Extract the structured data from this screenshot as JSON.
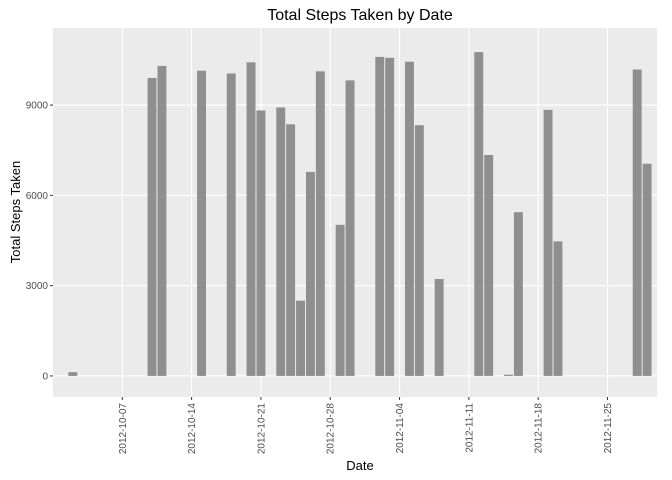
{
  "chart_data": {
    "type": "bar",
    "title": "Total Steps Taken by Date",
    "x_label": "Date",
    "y_label": "Total Steps Taken",
    "x": [
      "2012-10-02",
      "2012-10-10",
      "2012-10-11",
      "2012-10-15",
      "2012-10-18",
      "2012-10-20",
      "2012-10-21",
      "2012-10-23",
      "2012-10-24",
      "2012-10-25",
      "2012-10-26",
      "2012-10-27",
      "2012-10-29",
      "2012-10-30",
      "2012-11-02",
      "2012-11-03",
      "2012-11-05",
      "2012-11-06",
      "2012-11-08",
      "2012-11-12",
      "2012-11-13",
      "2012-11-15",
      "2012-11-16",
      "2012-11-19",
      "2012-11-20",
      "2012-11-28",
      "2012-11-29"
    ],
    "values": [
      126,
      9900,
      10300,
      10140,
      10050,
      10420,
      8820,
      8920,
      8360,
      2500,
      6780,
      10120,
      5020,
      9820,
      10600,
      10570,
      10440,
      8330,
      3220,
      10760,
      7340,
      41,
      5440,
      8840,
      4470,
      10180,
      7050
    ],
    "color": "#8f8f8f",
    "xlim": [
      "2012-09-30",
      "2012-11-30"
    ],
    "xticks": [
      "2012-10-07",
      "2012-10-14",
      "2012-10-21",
      "2012-10-28",
      "2012-11-04",
      "2012-11-11",
      "2012-11-18",
      "2012-11-25"
    ],
    "ylim": [
      -700,
      11560
    ],
    "yticks": [
      0,
      3000,
      6000,
      9000
    ],
    "grid": true
  }
}
